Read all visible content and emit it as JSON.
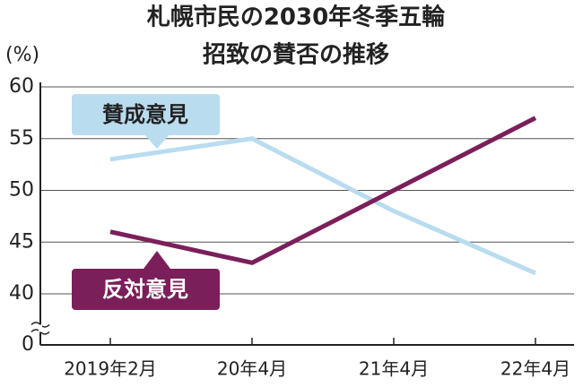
{
  "chart_data": {
    "type": "line",
    "title": [
      "札幌市民の2030年冬季五輪",
      "招致の賛否の推移"
    ],
    "y_unit_label": "(%)",
    "categories": [
      "2019年2月",
      "20年4月",
      "21年4月",
      "22年4月"
    ],
    "series": [
      {
        "name": "賛成意見",
        "color": "#b9dcef",
        "values": [
          53,
          55,
          48,
          42
        ]
      },
      {
        "name": "反対意見",
        "color": "#7b1f5a",
        "values": [
          46,
          43,
          50,
          57
        ]
      }
    ],
    "ylim": [
      0,
      60
    ],
    "yticks": [
      0,
      40,
      45,
      50,
      55,
      60
    ],
    "axis_break": [
      0,
      40
    ],
    "grid": true
  }
}
